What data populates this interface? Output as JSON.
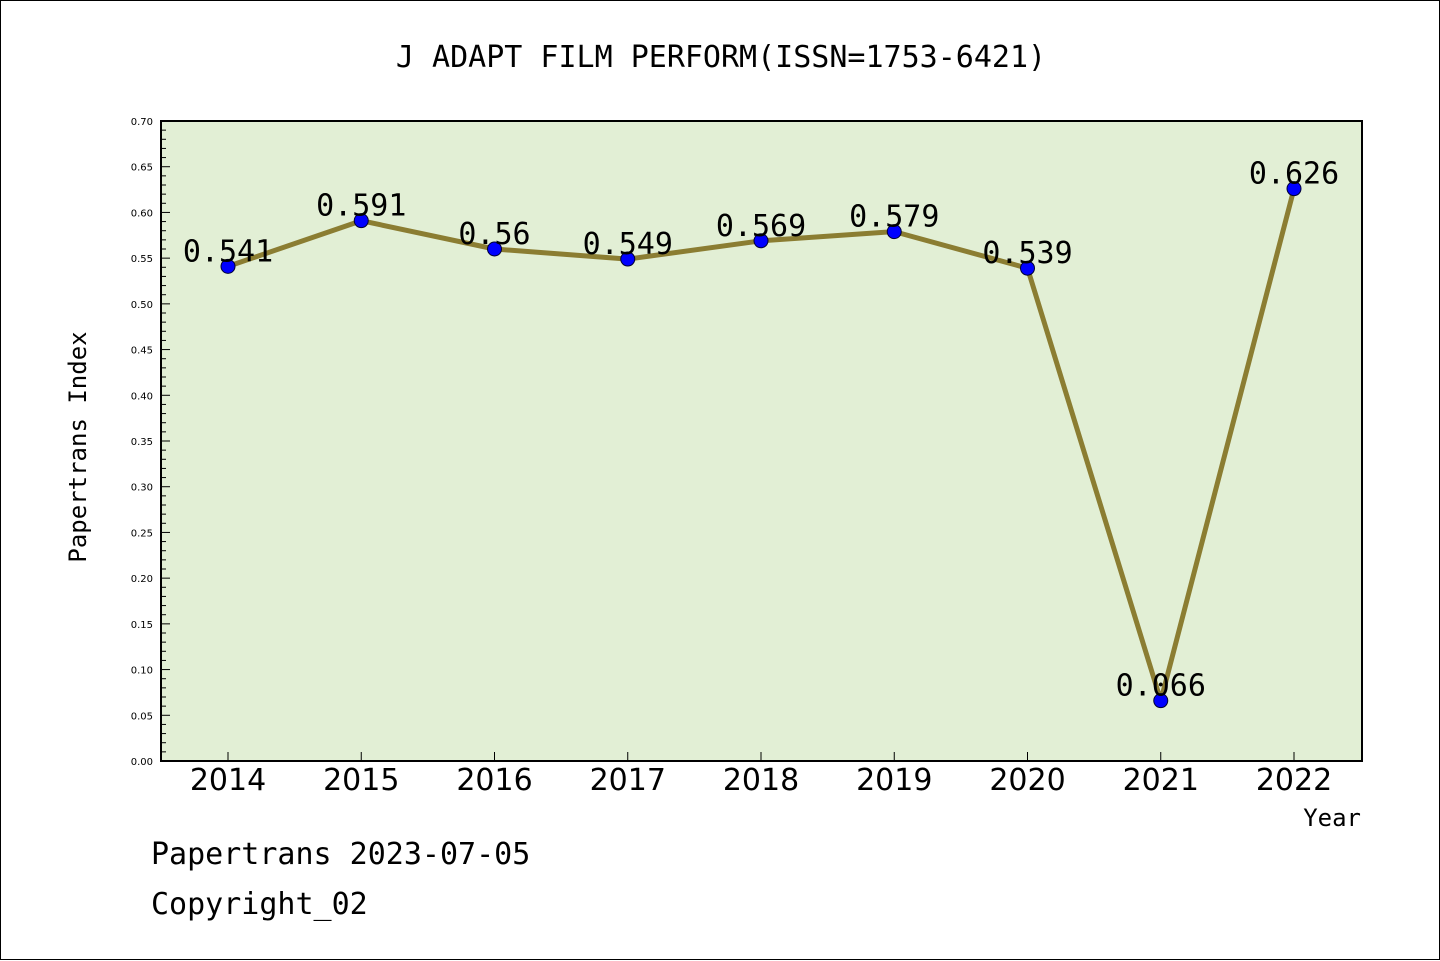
{
  "chart_data": {
    "type": "line",
    "title": "J ADAPT FILM PERFORM(ISSN=1753-6421)",
    "xlabel": "Year",
    "ylabel": "Papertrans Index",
    "categories": [
      "2014",
      "2015",
      "2016",
      "2017",
      "2018",
      "2019",
      "2020",
      "2021",
      "2022"
    ],
    "series": [
      {
        "values": [
          0.541,
          0.591,
          0.56,
          0.549,
          0.569,
          0.579,
          0.539,
          0.066,
          0.626
        ]
      }
    ],
    "data_labels": [
      "0.541",
      "0.591",
      "0.56",
      "0.549",
      "0.569",
      "0.579",
      "0.539",
      "0.066",
      "0.626"
    ],
    "ylim": [
      0,
      0.7
    ],
    "yticks": [
      "0.00",
      "0.05",
      "0.10",
      "0.15",
      "0.20",
      "0.25",
      "0.30",
      "0.35",
      "0.40",
      "0.45",
      "0.50",
      "0.55",
      "0.60",
      "0.65",
      "0.70"
    ],
    "grid": false,
    "legend": "none",
    "colors": {
      "plot_bg": "#e2efd5",
      "line": "#8b7d32",
      "marker": "#0000ff"
    }
  },
  "footer": {
    "line1": "Papertrans 2023-07-05",
    "line2": "Copyright_02"
  }
}
